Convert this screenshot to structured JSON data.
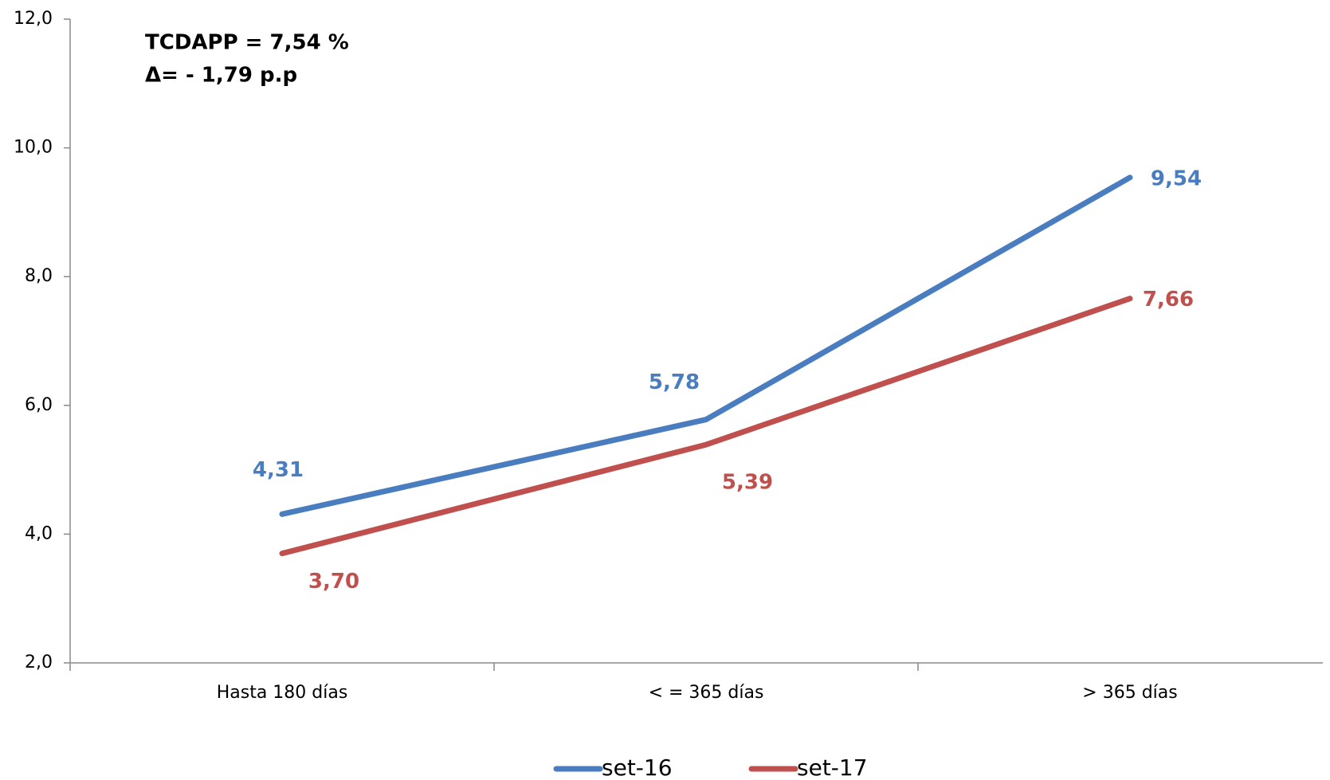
{
  "chart_data": {
    "type": "line",
    "annotations": [
      "TCDAPP = 7,54 %",
      "Δ= - 1,79 p.p"
    ],
    "categories": [
      "Hasta 180 días",
      "< = 365 días",
      "> 365 días"
    ],
    "series": [
      {
        "name": "set-16",
        "color": "#4a7dbf",
        "values": [
          4.31,
          5.78,
          9.54
        ],
        "value_labels": [
          "4,31",
          "5,78",
          "9,54"
        ]
      },
      {
        "name": "set-17",
        "color": "#c0504d",
        "values": [
          3.7,
          5.39,
          7.66
        ],
        "value_labels": [
          "3,70",
          "5,39",
          "7,66"
        ]
      }
    ],
    "ylim": [
      2,
      12
    ],
    "yticks": [
      {
        "value": 2,
        "label": "2,0"
      },
      {
        "value": 4,
        "label": "4,0"
      },
      {
        "value": 6,
        "label": "6,0"
      },
      {
        "value": 8,
        "label": "8,0"
      },
      {
        "value": 10,
        "label": "10,0"
      },
      {
        "value": 12,
        "label": "12,0"
      }
    ],
    "legend": "bottom"
  }
}
